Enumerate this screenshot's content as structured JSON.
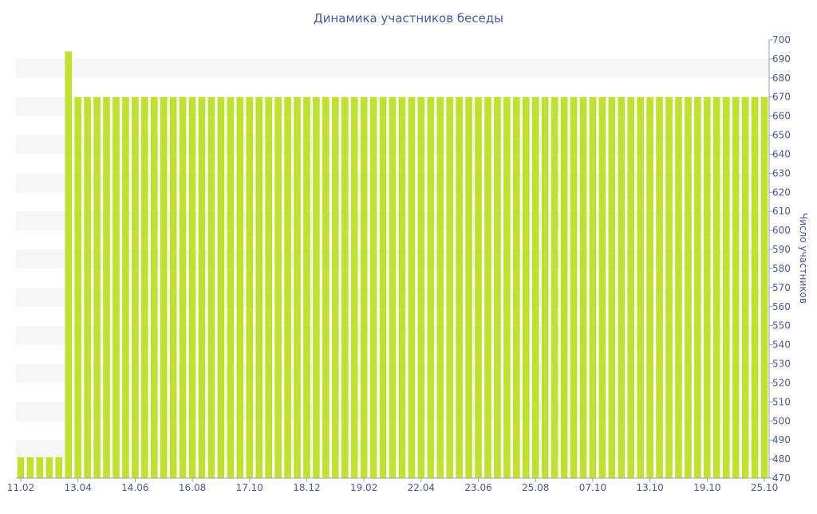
{
  "chart_data": {
    "type": "bar",
    "title": "Динамика участников беседы",
    "xlabel": "",
    "ylabel": "Число участников",
    "ylim": [
      470,
      700
    ],
    "y_ticks": [
      470,
      480,
      490,
      500,
      510,
      520,
      530,
      540,
      550,
      560,
      570,
      580,
      590,
      600,
      610,
      620,
      630,
      640,
      650,
      660,
      670,
      680,
      690,
      700
    ],
    "y_axis_position": "right",
    "x_tick_labels": [
      "11.02",
      "13.04",
      "14.06",
      "16.08",
      "17.10",
      "18.12",
      "19.02",
      "22.04",
      "23.06",
      "25.08",
      "07.10",
      "13.10",
      "19.10",
      "25.10"
    ],
    "x_tick_bar_index": [
      0,
      6,
      12,
      18,
      24,
      30,
      36,
      42,
      48,
      54,
      60,
      66,
      72,
      78
    ],
    "grid": "alternating-horizontal-bands",
    "bar_color": "#c2e12f",
    "band_color": "#f6f6f6",
    "text_color": "#4a5a9a",
    "values": [
      481,
      481,
      481,
      481,
      481,
      694,
      670,
      670,
      670,
      670,
      670,
      670,
      670,
      670,
      670,
      670,
      670,
      670,
      670,
      670,
      670,
      670,
      670,
      670,
      670,
      670,
      670,
      670,
      670,
      670,
      670,
      670,
      670,
      670,
      670,
      670,
      670,
      670,
      670,
      670,
      670,
      670,
      670,
      670,
      670,
      670,
      670,
      670,
      670,
      670,
      670,
      670,
      670,
      670,
      670,
      670,
      670,
      670,
      670,
      670,
      670,
      670,
      670,
      670,
      670,
      670,
      670,
      670,
      670,
      670,
      670,
      670,
      670,
      670,
      670,
      670,
      670,
      670,
      670
    ]
  }
}
